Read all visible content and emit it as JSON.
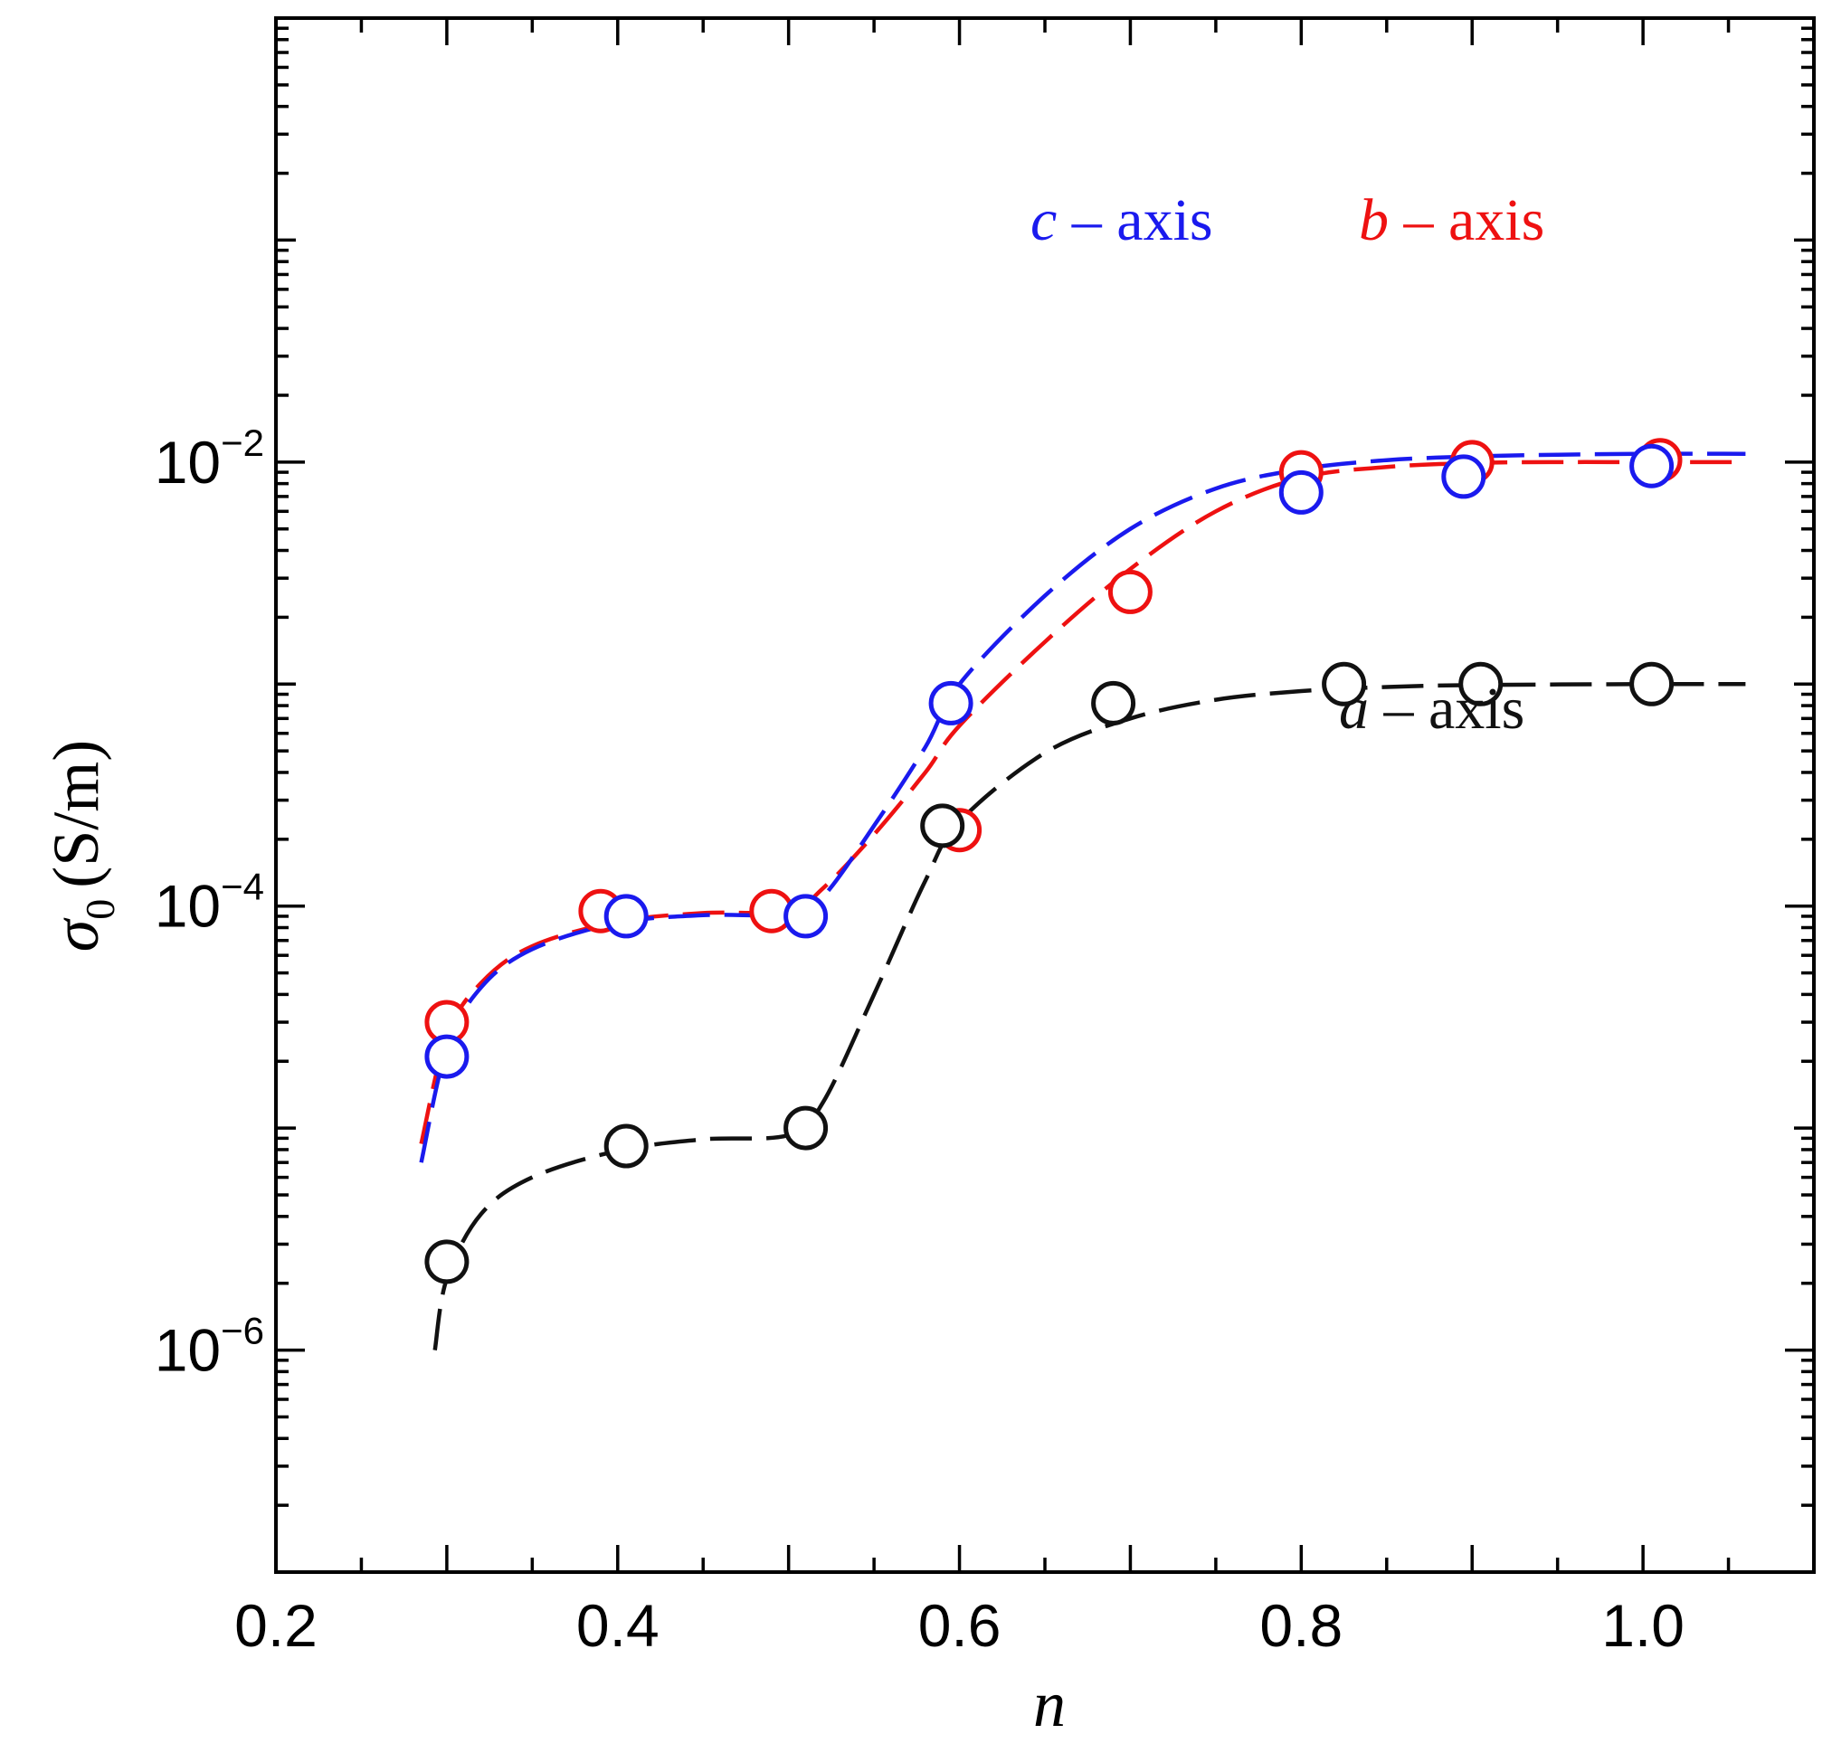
{
  "chart_data": {
    "type": "scatter",
    "x_label": "n",
    "y_label_symbol": "σ",
    "y_label_subscript": "0",
    "y_label_unit": "(S/m)",
    "x_range": [
      0.2,
      1.1
    ],
    "y_range_log10": [
      -7,
      0
    ],
    "y_scale": "log",
    "x_ticks": [
      {
        "value": 0.2,
        "label": "0.2"
      },
      {
        "value": 0.4,
        "label": "0.4"
      },
      {
        "value": 0.6,
        "label": "0.6"
      },
      {
        "value": 0.8,
        "label": "0.8"
      },
      {
        "value": 1.0,
        "label": "1.0"
      }
    ],
    "y_ticks": [
      {
        "exp": -2,
        "base": "10",
        "sup": "−2"
      },
      {
        "exp": -4,
        "base": "10",
        "sup": "−4"
      },
      {
        "exp": -6,
        "base": "10",
        "sup": "−6"
      }
    ],
    "series": [
      {
        "name": "b-axis",
        "label_var": "b",
        "label_rest": " – axis",
        "color": "#ee1111",
        "points": [
          [
            0.3,
            3e-05
          ],
          [
            0.39,
            9.5e-05
          ],
          [
            0.49,
            9.5e-05
          ],
          [
            0.6,
            0.00022
          ],
          [
            0.7,
            0.0026
          ],
          [
            0.8,
            0.009
          ],
          [
            0.9,
            0.01
          ],
          [
            1.01,
            0.0102
          ]
        ],
        "fit": [
          [
            0.285,
            8.5e-06
          ],
          [
            0.3,
            2.6e-05
          ],
          [
            0.32,
            4.5e-05
          ],
          [
            0.35,
            6.6e-05
          ],
          [
            0.4,
            8.5e-05
          ],
          [
            0.45,
            9.3e-05
          ],
          [
            0.5,
            9.5e-05
          ],
          [
            0.52,
            0.00012
          ],
          [
            0.55,
            0.00021
          ],
          [
            0.58,
            0.0004
          ],
          [
            0.6,
            0.00065
          ],
          [
            0.65,
            0.00155
          ],
          [
            0.7,
            0.0033
          ],
          [
            0.75,
            0.006
          ],
          [
            0.8,
            0.0085
          ],
          [
            0.85,
            0.0095
          ],
          [
            0.9,
            0.0099
          ],
          [
            0.95,
            0.01
          ],
          [
            1.0,
            0.01
          ],
          [
            1.06,
            0.01
          ]
        ]
      },
      {
        "name": "c-axis",
        "label_var": "c",
        "label_rest": " – axis",
        "color": "#1a1aee",
        "points": [
          [
            0.3,
            2.1e-05
          ],
          [
            0.405,
            9e-05
          ],
          [
            0.51,
            9e-05
          ],
          [
            0.595,
            0.00082
          ],
          [
            0.8,
            0.0073
          ],
          [
            0.895,
            0.0086
          ],
          [
            1.005,
            0.0096
          ]
        ],
        "fit": [
          [
            0.285,
            7e-06
          ],
          [
            0.3,
            2.3e-05
          ],
          [
            0.32,
            4.3e-05
          ],
          [
            0.35,
            6.4e-05
          ],
          [
            0.4,
            8.4e-05
          ],
          [
            0.45,
            9.1e-05
          ],
          [
            0.5,
            9.2e-05
          ],
          [
            0.52,
            0.00011
          ],
          [
            0.55,
            0.00023
          ],
          [
            0.58,
            0.00052
          ],
          [
            0.6,
            0.001
          ],
          [
            0.65,
            0.0025
          ],
          [
            0.7,
            0.005
          ],
          [
            0.75,
            0.0076
          ],
          [
            0.8,
            0.0093
          ],
          [
            0.85,
            0.0102
          ],
          [
            0.9,
            0.0106
          ],
          [
            0.95,
            0.0108
          ],
          [
            1.0,
            0.0109
          ],
          [
            1.06,
            0.0109
          ]
        ]
      },
      {
        "name": "a-axis",
        "label_var": "a",
        "label_rest": " – axis",
        "color": "#111111",
        "points": [
          [
            0.3,
            2.5e-06
          ],
          [
            0.405,
            8.3e-06
          ],
          [
            0.51,
            1e-05
          ],
          [
            0.59,
            0.00023
          ],
          [
            0.69,
            0.00082
          ],
          [
            0.825,
            0.001
          ],
          [
            0.905,
            0.001
          ],
          [
            1.005,
            0.001
          ]
        ],
        "fit": [
          [
            0.293,
            1e-06
          ],
          [
            0.3,
            2.1e-06
          ],
          [
            0.32,
            4.1e-06
          ],
          [
            0.35,
            6e-06
          ],
          [
            0.4,
            7.9e-06
          ],
          [
            0.45,
            8.9e-06
          ],
          [
            0.5,
            9.3e-06
          ],
          [
            0.52,
            1.3e-05
          ],
          [
            0.55,
            4e-05
          ],
          [
            0.58,
            0.00013
          ],
          [
            0.6,
            0.00024
          ],
          [
            0.65,
            0.00049
          ],
          [
            0.7,
            0.0007
          ],
          [
            0.75,
            0.00085
          ],
          [
            0.8,
            0.00093
          ],
          [
            0.85,
            0.00097
          ],
          [
            0.9,
            0.00099
          ],
          [
            1.0,
            0.001
          ],
          [
            1.06,
            0.001
          ]
        ]
      }
    ]
  }
}
